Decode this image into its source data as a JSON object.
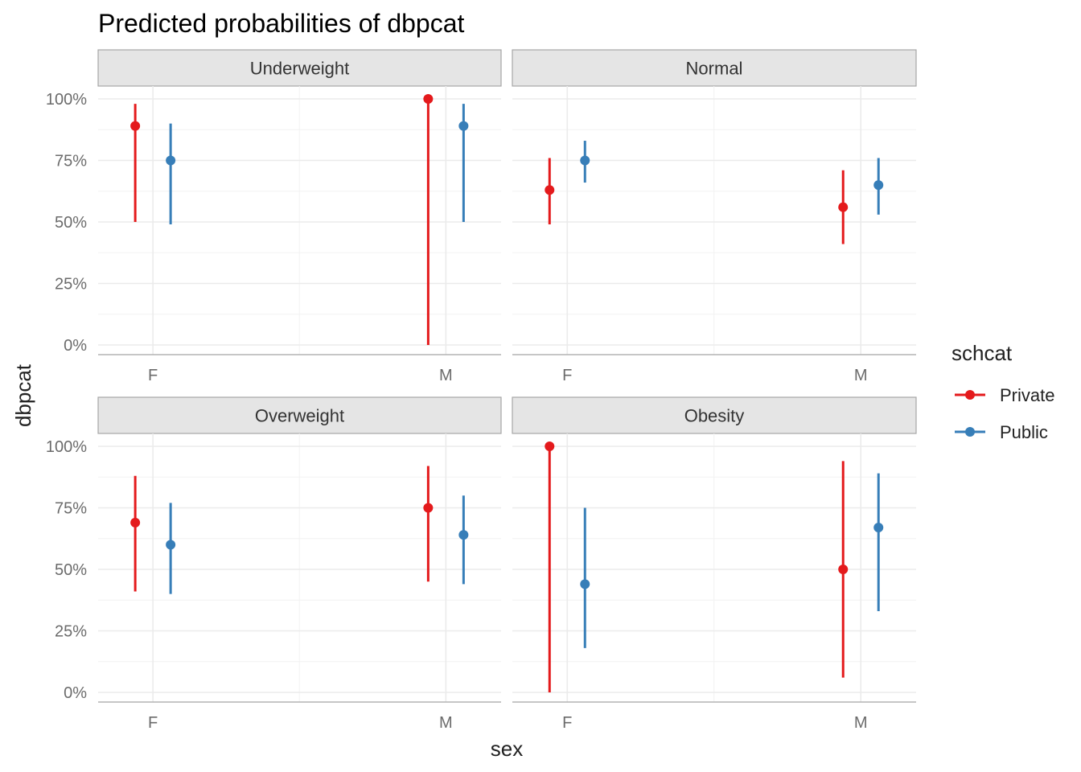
{
  "chart_data": {
    "type": "pointrange",
    "title": "Predicted probabilities of dbpcat",
    "xlabel": "sex",
    "ylabel": "dbpcat",
    "categories": [
      "F",
      "M"
    ],
    "y_ticks": [
      "0%",
      "25%",
      "50%",
      "75%",
      "100%"
    ],
    "ylim": [
      0,
      1
    ],
    "grid": true,
    "legend": {
      "title": "schcat",
      "position": "right",
      "entries": [
        {
          "name": "Private",
          "color": "#e41a1c"
        },
        {
          "name": "Public",
          "color": "#377eb8"
        }
      ]
    },
    "facets": [
      {
        "label": "Underweight",
        "series": [
          {
            "name": "Private",
            "points": [
              {
                "x": "F",
                "y": 0.89,
                "lo": 0.5,
                "hi": 0.98
              },
              {
                "x": "M",
                "y": 1.0,
                "lo": 0.0,
                "hi": 1.0
              }
            ]
          },
          {
            "name": "Public",
            "points": [
              {
                "x": "F",
                "y": 0.75,
                "lo": 0.49,
                "hi": 0.9
              },
              {
                "x": "M",
                "y": 0.89,
                "lo": 0.5,
                "hi": 0.98
              }
            ]
          }
        ]
      },
      {
        "label": "Normal",
        "series": [
          {
            "name": "Private",
            "points": [
              {
                "x": "F",
                "y": 0.63,
                "lo": 0.49,
                "hi": 0.76
              },
              {
                "x": "M",
                "y": 0.56,
                "lo": 0.41,
                "hi": 0.71
              }
            ]
          },
          {
            "name": "Public",
            "points": [
              {
                "x": "F",
                "y": 0.75,
                "lo": 0.66,
                "hi": 0.83
              },
              {
                "x": "M",
                "y": 0.65,
                "lo": 0.53,
                "hi": 0.76
              }
            ]
          }
        ]
      },
      {
        "label": "Overweight",
        "series": [
          {
            "name": "Private",
            "points": [
              {
                "x": "F",
                "y": 0.69,
                "lo": 0.41,
                "hi": 0.88
              },
              {
                "x": "M",
                "y": 0.75,
                "lo": 0.45,
                "hi": 0.92
              }
            ]
          },
          {
            "name": "Public",
            "points": [
              {
                "x": "F",
                "y": 0.6,
                "lo": 0.4,
                "hi": 0.77
              },
              {
                "x": "M",
                "y": 0.64,
                "lo": 0.44,
                "hi": 0.8
              }
            ]
          }
        ]
      },
      {
        "label": "Obesity",
        "series": [
          {
            "name": "Private",
            "points": [
              {
                "x": "F",
                "y": 1.0,
                "lo": 0.0,
                "hi": 1.0
              },
              {
                "x": "M",
                "y": 0.5,
                "lo": 0.06,
                "hi": 0.94
              }
            ]
          },
          {
            "name": "Public",
            "points": [
              {
                "x": "F",
                "y": 0.44,
                "lo": 0.18,
                "hi": 0.75
              },
              {
                "x": "M",
                "y": 0.67,
                "lo": 0.33,
                "hi": 0.89
              }
            ]
          }
        ]
      }
    ]
  }
}
